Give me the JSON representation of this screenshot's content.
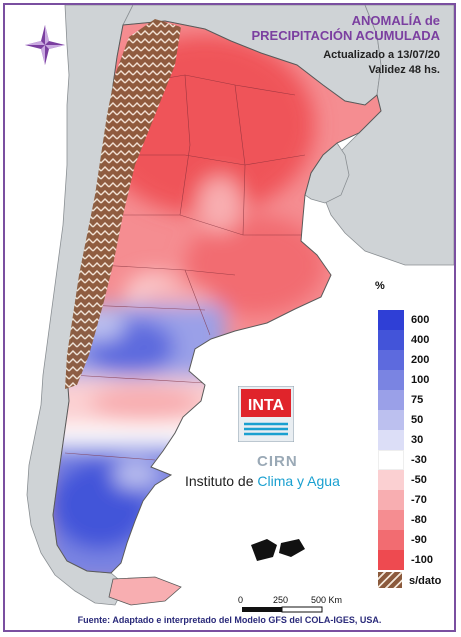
{
  "header": {
    "title_line1": "ANOMALÍA de",
    "title_line2": "PRECIPITACIÓN ACUMULADA",
    "updated": "Actualizado a 13/07/20",
    "validity": "Validez 48 hs."
  },
  "legend": {
    "unit": "%",
    "items": [
      {
        "label": "600",
        "color": "#2f3fd6"
      },
      {
        "label": "400",
        "color": "#4354d9"
      },
      {
        "label": "200",
        "color": "#5d6ade"
      },
      {
        "label": "100",
        "color": "#7a84e2"
      },
      {
        "label": "75",
        "color": "#9aa0e8"
      },
      {
        "label": "50",
        "color": "#bcc0ef"
      },
      {
        "label": "30",
        "color": "#dcdef7"
      },
      {
        "label": "-30",
        "color": "#ffffff"
      },
      {
        "label": "-50",
        "color": "#fbd0d2"
      },
      {
        "label": "-70",
        "color": "#f8aeb1"
      },
      {
        "label": "-80",
        "color": "#f58d91"
      },
      {
        "label": "-90",
        "color": "#f26c71"
      },
      {
        "label": "-100",
        "color": "#ee4a50"
      }
    ],
    "nodata_label": "s/dato",
    "nodata_color": "#8b5a3c"
  },
  "logo": {
    "inta_text": "INTA",
    "cirn_text": "CIRN",
    "institute_prefix": "Instituto de ",
    "institute_highlight": "Clima y Agua",
    "brand_color": "#e0242b"
  },
  "scale": {
    "labels": [
      "0",
      "250",
      "500 Km"
    ]
  },
  "footer": {
    "source": "Fuente: Adaptado e interpretado del Modelo GFS del COLA-IGES, USA."
  }
}
